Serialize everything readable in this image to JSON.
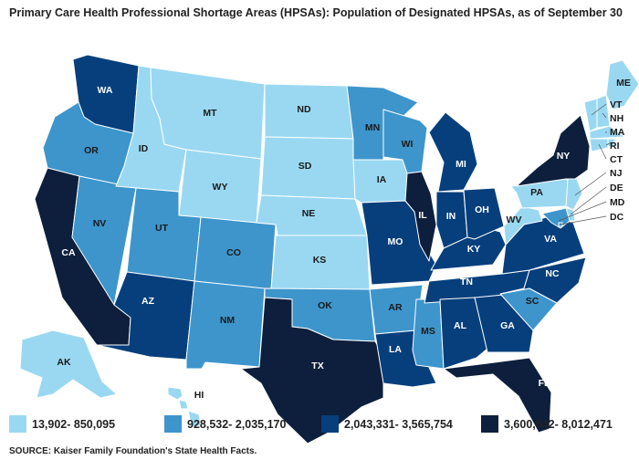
{
  "title": "Primary Care Health Professional Shortage Areas (HPSAs): Population of Designated HPSAs, as of September 30",
  "source": "SOURCE: Kaiser Family Foundation's State Health Facts.",
  "colors": {
    "c1": "#9ad8f2",
    "c2": "#3d95cc",
    "c3": "#063f7c",
    "c4": "#0d1f3c"
  },
  "legend": [
    {
      "label": "13,902- 850,095",
      "color": "#9ad8f2"
    },
    {
      "label": "928,532- 2,035,170",
      "color": "#3d95cc"
    },
    {
      "label": "2,043,331- 3,565,754",
      "color": "#063f7c"
    },
    {
      "label": "3,600,042- 8,012,471",
      "color": "#0d1f3c"
    }
  ],
  "states": [
    {
      "abbr": "WA",
      "bin": 3
    },
    {
      "abbr": "OR",
      "bin": 2
    },
    {
      "abbr": "CA",
      "bin": 4
    },
    {
      "abbr": "NV",
      "bin": 2
    },
    {
      "abbr": "ID",
      "bin": 1
    },
    {
      "abbr": "MT",
      "bin": 1
    },
    {
      "abbr": "WY",
      "bin": 1
    },
    {
      "abbr": "UT",
      "bin": 2
    },
    {
      "abbr": "AZ",
      "bin": 3
    },
    {
      "abbr": "CO",
      "bin": 2
    },
    {
      "abbr": "NM",
      "bin": 2
    },
    {
      "abbr": "ND",
      "bin": 1
    },
    {
      "abbr": "SD",
      "bin": 1
    },
    {
      "abbr": "NE",
      "bin": 1
    },
    {
      "abbr": "KS",
      "bin": 1
    },
    {
      "abbr": "OK",
      "bin": 2
    },
    {
      "abbr": "TX",
      "bin": 4
    },
    {
      "abbr": "MN",
      "bin": 2
    },
    {
      "abbr": "IA",
      "bin": 1
    },
    {
      "abbr": "MO",
      "bin": 3
    },
    {
      "abbr": "AR",
      "bin": 2
    },
    {
      "abbr": "LA",
      "bin": 3
    },
    {
      "abbr": "WI",
      "bin": 2
    },
    {
      "abbr": "IL",
      "bin": 4
    },
    {
      "abbr": "MS",
      "bin": 2
    },
    {
      "abbr": "MI",
      "bin": 3
    },
    {
      "abbr": "IN",
      "bin": 3
    },
    {
      "abbr": "KY",
      "bin": 3
    },
    {
      "abbr": "TN",
      "bin": 3
    },
    {
      "abbr": "AL",
      "bin": 3
    },
    {
      "abbr": "OH",
      "bin": 3
    },
    {
      "abbr": "GA",
      "bin": 3
    },
    {
      "abbr": "FL",
      "bin": 4
    },
    {
      "abbr": "SC",
      "bin": 2
    },
    {
      "abbr": "NC",
      "bin": 3
    },
    {
      "abbr": "VA",
      "bin": 3
    },
    {
      "abbr": "WV",
      "bin": 1
    },
    {
      "abbr": "PA",
      "bin": 1
    },
    {
      "abbr": "NY",
      "bin": 4
    },
    {
      "abbr": "ME",
      "bin": 1
    },
    {
      "abbr": "VT",
      "bin": 1
    },
    {
      "abbr": "NH",
      "bin": 1
    },
    {
      "abbr": "MA",
      "bin": 1
    },
    {
      "abbr": "RI",
      "bin": 1
    },
    {
      "abbr": "CT",
      "bin": 1
    },
    {
      "abbr": "NJ",
      "bin": 1
    },
    {
      "abbr": "DE",
      "bin": 1
    },
    {
      "abbr": "MD",
      "bin": 2
    },
    {
      "abbr": "DC",
      "bin": 2
    },
    {
      "abbr": "AK",
      "bin": 1
    },
    {
      "abbr": "HI",
      "bin": 1
    }
  ]
}
